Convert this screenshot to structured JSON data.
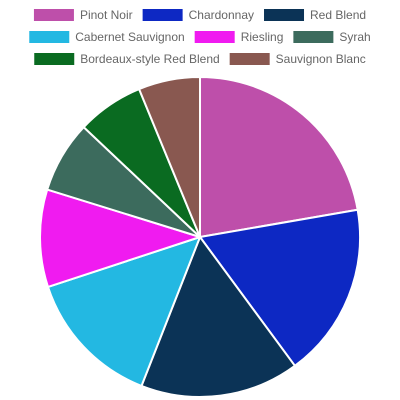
{
  "chart_data": {
    "type": "pie",
    "categories": [
      "Pinot Noir",
      "Chardonnay",
      "Red Blend",
      "Cabernet Sauvignon",
      "Riesling",
      "Syrah",
      "Bordeaux-style Red Blend",
      "Sauvignon Blanc"
    ],
    "values": [
      21.5,
      17.0,
      15.5,
      13.5,
      9.5,
      7.0,
      6.5,
      6.0
    ],
    "colors": [
      "#BE4FAA",
      "#0D28C3",
      "#0B3356",
      "#23B8E2",
      "#F01BF0",
      "#3C6B5D",
      "#0A6B21",
      "#895850"
    ],
    "legend_position": "top",
    "start_angle_deg": 0,
    "direction": "clockwise",
    "title": "",
    "xlabel": "",
    "ylabel": ""
  }
}
